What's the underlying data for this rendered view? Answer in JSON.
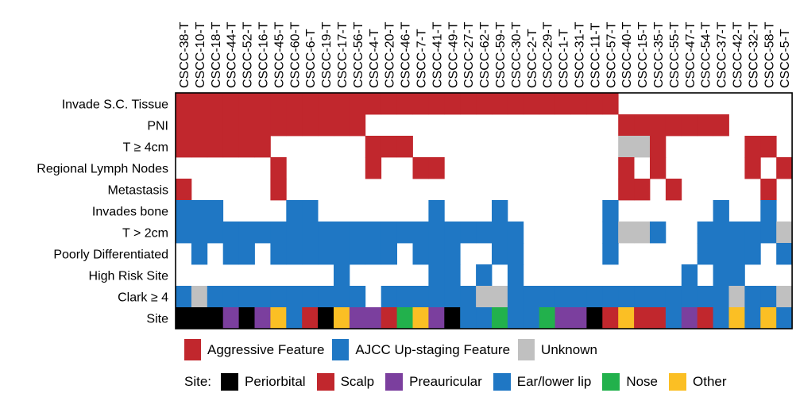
{
  "colors": {
    "aggressive": "#c1272d",
    "ajcc": "#1f77c4",
    "unknown": "#c0c0c0",
    "periorbital": "#000000",
    "scalp": "#c1272d",
    "preauricular": "#7b3f9e",
    "ear": "#1f77c4",
    "nose": "#22b14c",
    "other": "#fbbf24"
  },
  "legend_features": [
    {
      "key": "A",
      "label": "Aggressive Feature",
      "color_key": "aggressive"
    },
    {
      "key": "J",
      "label": "AJCC Up-staging Feature",
      "color_key": "ajcc"
    },
    {
      "key": "U",
      "label": "Unknown",
      "color_key": "unknown"
    }
  ],
  "legend_sites": {
    "title": "Site:",
    "items": [
      {
        "key": "K",
        "label": "Periorbital",
        "color_key": "periorbital"
      },
      {
        "key": "S",
        "label": "Scalp",
        "color_key": "scalp"
      },
      {
        "key": "P",
        "label": "Preauricular",
        "color_key": "preauricular"
      },
      {
        "key": "E",
        "label": "Ear/lower lip",
        "color_key": "ear"
      },
      {
        "key": "N",
        "label": "Nose",
        "color_key": "nose"
      },
      {
        "key": "O",
        "label": "Other",
        "color_key": "other"
      }
    ]
  },
  "chart_data": {
    "type": "heatmap",
    "samples": [
      "CSCC-38-T",
      "CSCC-10-T",
      "CSCC-18-T",
      "CSCC-44-T",
      "CSCC-52-T",
      "CSCC-16-T",
      "CSCC-45-T",
      "CSCC-60-T",
      "CSCC-6-T",
      "CSCC-19-T",
      "CSCC-17-T",
      "CSCC-56-T",
      "CSCC-4-T",
      "CSCC-20-T",
      "CSCC-46-T",
      "CSCC-7-T",
      "CSCC-41-T",
      "CSCC-49-T",
      "CSCC-27-T",
      "CSCC-62-T",
      "CSCC-59-T",
      "CSCC-30-T",
      "CSCC-2-T",
      "CSCC-29-T",
      "CSCC-1-T",
      "CSCC-31-T",
      "CSCC-11-T",
      "CSCC-57-T",
      "CSCC-40-T",
      "CSCC-15-T",
      "CSCC-35-T",
      "CSCC-55-T",
      "CSCC-47-T",
      "CSCC-54-T",
      "CSCC-37-T",
      "CSCC-42-T",
      "CSCC-32-T",
      "CSCC-58-T",
      "CSCC-5-T"
    ],
    "features": [
      "Invade S.C. Tissue",
      "PNI",
      "T ≥ 4cm",
      "Regional Lymph Nodes",
      "Metastasis",
      "Invades bone",
      "T > 2cm",
      "Poorly Differentiated",
      "High Risk Site",
      "Clark ≥ 4",
      "Site"
    ],
    "cell_codes": {
      "A": "Aggressive Feature",
      "J": "AJCC Up-staging Feature",
      "U": "Unknown",
      ".": "absent",
      "K": "Periorbital",
      "S": "Scalp",
      "P": "Preauricular",
      "E": "Ear/lower lip",
      "N": "Nose",
      "O": "Other"
    },
    "rows": [
      "AAAAAAAAAAAAAAAAAAAAAAAAAAAA...........",
      "AAAAAAAAAAAA................AAAAAAA....",
      "AAAAAA......AAA.............UUA.....AA.U",
      "......A.....A..AA...........A.A.....A.A",
      "A.....A.....................AA.A.....A",
      "JJJ....JJ.......J...J......J......J..J",
      "JJJJJJJJJJJJJJJJJJJJJJ.....JUUJ..JJJJJU",
      ".J.JJ.JJJJJJJJ.JJJ..JJ.....J.....JJJJ.J",
      "..........J.....JJ.J.J..........J.JJ..",
      "JUJJJJJJJJJJ.JJJJJJUUJJJJJJJJJJJJJJUJJU",
      "KKKPKPOESKOPPSNOPKEENEENPPKSOSSEPSEOEOE"
    ]
  }
}
